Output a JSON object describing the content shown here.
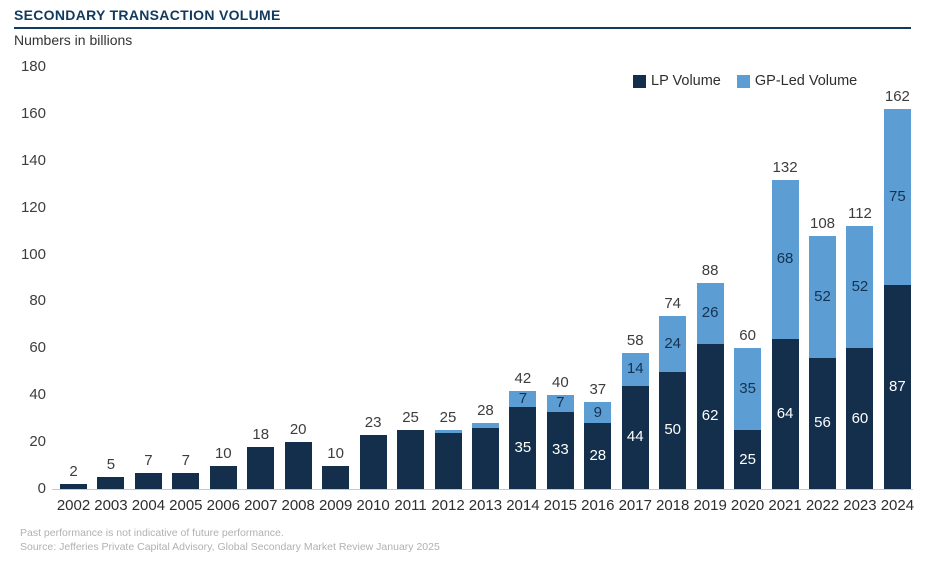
{
  "header": {
    "title": "SECONDARY TRANSACTION VOLUME",
    "subtitle": "Numbers in billions"
  },
  "chart_data": {
    "type": "bar",
    "stacked": true,
    "title": "SECONDARY TRANSACTION VOLUME",
    "subtitle": "Numbers in billions",
    "grid": false,
    "legend_position": "top-right",
    "ylim": [
      0,
      180
    ],
    "yticks": [
      0,
      20,
      40,
      60,
      80,
      100,
      120,
      140,
      160,
      180
    ],
    "categories": [
      "2002",
      "2003",
      "2004",
      "2005",
      "2006",
      "2007",
      "2008",
      "2009",
      "2010",
      "2011",
      "2012",
      "2013",
      "2014",
      "2015",
      "2016",
      "2017",
      "2018",
      "2019",
      "2020",
      "2021",
      "2022",
      "2023",
      "2024"
    ],
    "series": [
      {
        "name": "LP Volume",
        "color": "#132f4c",
        "values": [
          2,
          5,
          7,
          7,
          10,
          18,
          20,
          10,
          23,
          25,
          24,
          26,
          35,
          33,
          28,
          44,
          50,
          62,
          25,
          64,
          56,
          60,
          87
        ]
      },
      {
        "name": "GP-Led Volume",
        "color": "#5c9ed4",
        "values": [
          0,
          0,
          0,
          0,
          0,
          0,
          0,
          0,
          0,
          0,
          1,
          2,
          7,
          7,
          9,
          14,
          24,
          26,
          35,
          68,
          52,
          52,
          75
        ]
      }
    ],
    "totals": [
      2,
      5,
      7,
      7,
      10,
      18,
      20,
      10,
      23,
      25,
      25,
      28,
      42,
      40,
      37,
      58,
      74,
      88,
      60,
      132,
      108,
      112,
      162
    ],
    "segment_labels_start_index": 12
  },
  "footer": {
    "line1": "Past performance is not indicative of future performance.",
    "line2": "Source: Jefferies Private Capital Advisory, Global Secondary Market Review January 2025"
  }
}
